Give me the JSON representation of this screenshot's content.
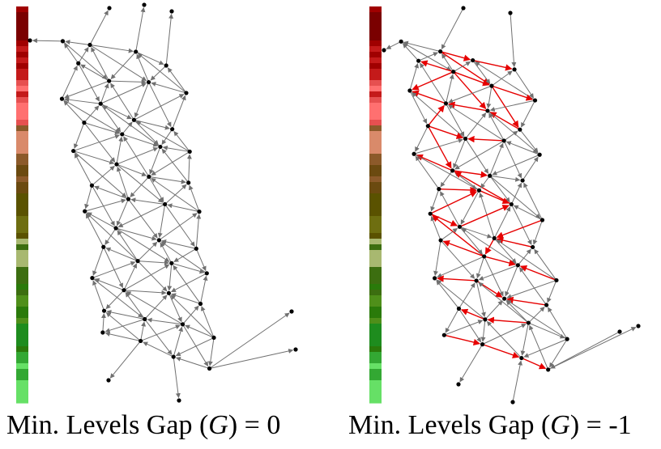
{
  "panels": [
    {
      "id": "left",
      "caption_prefix": "Min. Levels Gap (",
      "caption_var": "G",
      "caption_suffix": ") = 0",
      "edge_color": "#707070",
      "highlight_color": "#e60000"
    },
    {
      "id": "right",
      "caption_prefix": "Min. Levels Gap (",
      "caption_var": "G",
      "caption_suffix": ") = -1",
      "edge_color": "#707070",
      "highlight_color": "#e60000"
    }
  ],
  "level_bar_colors": [
    "#7a0000",
    "#a00000",
    "#c41a1a",
    "#e65050",
    "#ff7070",
    "#d98a6a",
    "#8c5a2a",
    "#6b4a10",
    "#5a5200",
    "#6e6e10",
    "#a8b870",
    "#3c6e10",
    "#4f8f1a",
    "#2a7a0a",
    "#1e8c1e",
    "#33a833",
    "#66e066"
  ],
  "node_color": "#000000"
}
